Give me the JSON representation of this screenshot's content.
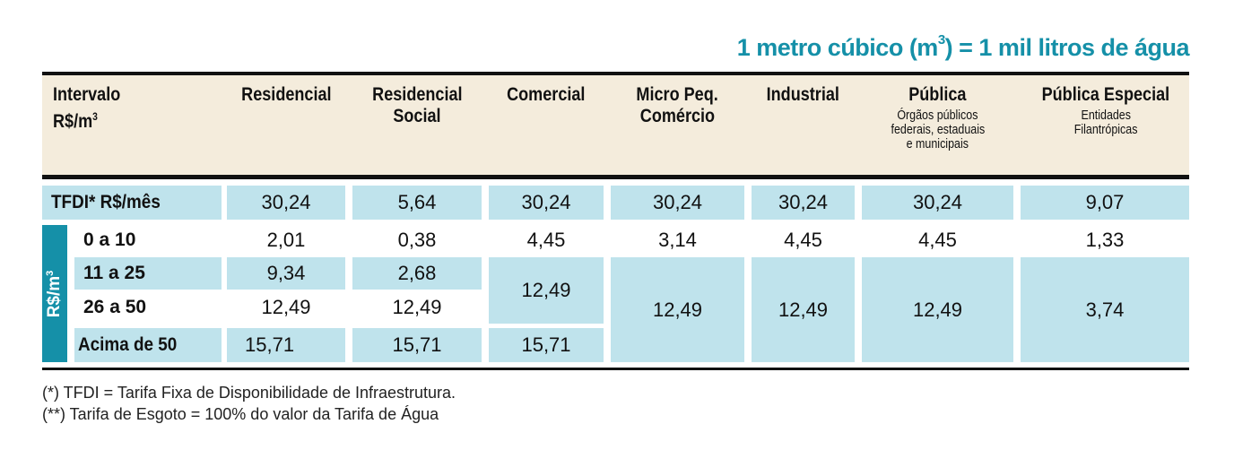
{
  "title": {
    "text_before": "1 metro cúbico (m",
    "superscript": "3",
    "text_after": ") = 1 mil litros de água"
  },
  "colors": {
    "accent": "#1590a8",
    "header_bg": "#f4ecdc",
    "cell_bg": "#bfe3ec",
    "rule": "#111111"
  },
  "header": {
    "interval": {
      "line1": "Intervalo",
      "line2_base": "R$/m",
      "line2_sup": "3"
    },
    "columns": [
      {
        "label": "Residencial",
        "sub": ""
      },
      {
        "label": "Residencial Social",
        "sub": ""
      },
      {
        "label": "Comercial",
        "sub": ""
      },
      {
        "label": "Micro Peq. Comércio",
        "sub": ""
      },
      {
        "label": "Industrial",
        "sub": ""
      },
      {
        "label": "Pública",
        "sub": "Órgãos públicos federais, estaduais e municipais"
      },
      {
        "label": "Pública Especial",
        "sub": "Entidades Filantrópicas"
      }
    ],
    "col_lines": {
      "res_social_1": "Residencial",
      "res_social_2": "Social",
      "micro_1": "Micro Peq.",
      "micro_2": "Comércio",
      "publica_sub_1": "Órgãos públicos",
      "publica_sub_2": "federais, estaduais",
      "publica_sub_3": "e municipais",
      "esp_sub_1": "Entidades",
      "esp_sub_2": "Filantrópicas"
    }
  },
  "side_label": {
    "base": "R$/m",
    "sup": "3"
  },
  "rows": {
    "tfdi": {
      "label": "TFDI* R$/mês",
      "values": [
        "30,24",
        "5,64",
        "30,24",
        "30,24",
        "30,24",
        "30,24",
        "9,07"
      ]
    },
    "r0_10": {
      "label": "0 a 10",
      "values": [
        "2,01",
        "0,38",
        "4,45",
        "3,14",
        "4,45",
        "4,45",
        "1,33"
      ]
    },
    "r11_25": {
      "label": "11 a 25",
      "values": [
        "9,34",
        "2,68"
      ]
    },
    "r26_50": {
      "label": "26 a 50",
      "values": [
        "12,49",
        "12,49"
      ]
    },
    "r_acima": {
      "label": "Acima de 50",
      "values": [
        "15,71",
        "15,71",
        "15,71"
      ]
    },
    "merged": {
      "comercial_11_50": "12,49",
      "micro_11_plus": "12,49",
      "industrial_11_plus": "12,49",
      "publica_11_plus": "12,49",
      "especial_11_plus": "3,74"
    }
  },
  "footnotes": [
    "(*) TFDI = Tarifa Fixa de Disponibilidade de Infraestrutura.",
    "(**) Tarifa de Esgoto = 100% do valor da Tarifa de Água"
  ]
}
